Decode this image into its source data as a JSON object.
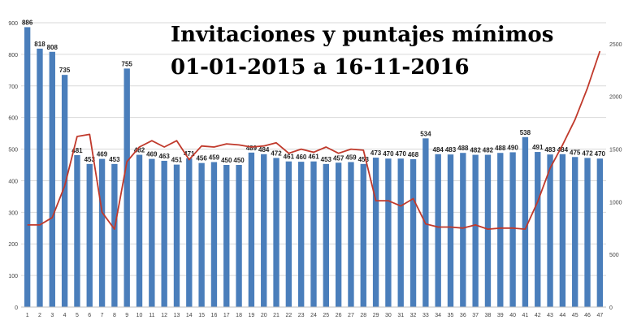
{
  "chart_data": {
    "type": "bar",
    "title": "Invitaciones y puntajes mínimos",
    "subtitle": "01-01-2015 a 16-11-2016",
    "categories": [
      "1",
      "2",
      "3",
      "4",
      "5",
      "6",
      "7",
      "8",
      "9",
      "10",
      "11",
      "12",
      "13",
      "14",
      "15",
      "16",
      "17",
      "18",
      "19",
      "20",
      "21",
      "22",
      "23",
      "24",
      "25",
      "26",
      "27",
      "28",
      "29",
      "30",
      "31",
      "32",
      "33",
      "34",
      "35",
      "36",
      "37",
      "38",
      "39",
      "40",
      "41",
      "42",
      "43",
      "44",
      "45",
      "46",
      "47"
    ],
    "series": [
      {
        "type": "bar",
        "axis": "left",
        "values": [
          886,
          818,
          808,
          735,
          481,
          453,
          469,
          453,
          755,
          482,
          469,
          463,
          451,
          471,
          456,
          459,
          450,
          450,
          489,
          484,
          472,
          461,
          460,
          461,
          453,
          457,
          459,
          453,
          473,
          470,
          470,
          468,
          534,
          484,
          483,
          488,
          482,
          482,
          488,
          490,
          538,
          491,
          483,
          484,
          475,
          472,
          470
        ]
      },
      {
        "type": "line",
        "axis": "right",
        "values": [
          780,
          780,
          850,
          1150,
          1620,
          1640,
          900,
          740,
          1380,
          1520,
          1580,
          1520,
          1580,
          1400,
          1530,
          1520,
          1550,
          1540,
          1520,
          1530,
          1560,
          1460,
          1500,
          1470,
          1520,
          1460,
          1500,
          1490,
          1010,
          1010,
          960,
          1030,
          790,
          760,
          760,
          750,
          780,
          740,
          750,
          750,
          740,
          1000,
          1320,
          1540,
          1780,
          2080,
          2430
        ]
      }
    ],
    "y_left": {
      "ylim": [
        0,
        900
      ],
      "ticks": [
        0,
        100,
        200,
        300,
        400,
        500,
        600,
        700,
        800,
        900
      ]
    },
    "y_right": {
      "ylim": [
        0,
        2700
      ],
      "ticks": [
        0,
        500,
        1000,
        1500,
        2000,
        2500
      ]
    },
    "grid": true,
    "colors": {
      "bar": "#4a7ebb",
      "line": "#c0392b",
      "grid": "#d9d9d9"
    }
  }
}
